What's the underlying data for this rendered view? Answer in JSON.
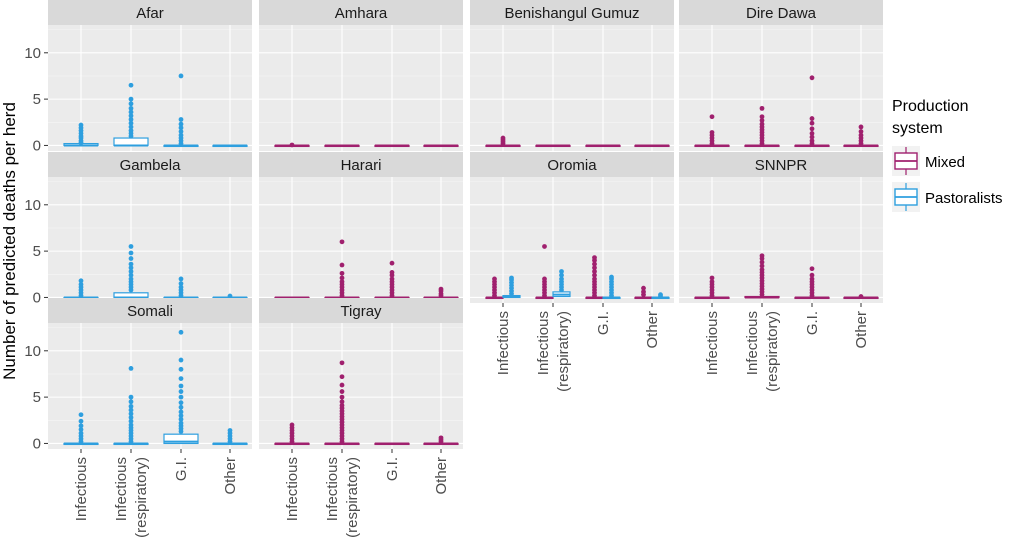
{
  "chart_data": {
    "type": "boxplot",
    "ylabel": "Number of predicted deaths per herd",
    "ylim": [
      -0.6,
      13
    ],
    "yticks": [
      0,
      5,
      10
    ],
    "categories": [
      "Infectious",
      "Infectious\n(respiratory)",
      "G.I.",
      "Other"
    ],
    "legend": {
      "title": "Production\nsystem",
      "position": "right",
      "entries": [
        {
          "name": "Mixed",
          "color": "#A0206E"
        },
        {
          "name": "Pastoralists",
          "color": "#2E9FDF"
        }
      ]
    },
    "panels": [
      {
        "region": "Afar",
        "series": [
          {
            "system": "Pastoralists",
            "boxes": [
              {
                "q1": 0,
                "median": 0,
                "q3": 0.2,
                "outliers": [
                  0.3,
                  0.5,
                  0.8,
                  1.0,
                  1.3,
                  1.6,
                  1.9,
                  2.2
                ]
              },
              {
                "q1": 0,
                "median": 0,
                "q3": 0.8,
                "outliers": [
                  1.0,
                  1.3,
                  1.6,
                  2.0,
                  2.4,
                  2.8,
                  3.2,
                  3.6,
                  4.0,
                  4.5,
                  5.0,
                  6.5
                ]
              },
              {
                "q1": 0,
                "median": 0,
                "q3": 0,
                "outliers": [
                  0.2,
                  0.5,
                  0.8,
                  1.1,
                  1.5,
                  1.9,
                  2.3,
                  2.8,
                  7.5
                ]
              },
              {
                "q1": 0,
                "median": 0,
                "q3": 0,
                "outliers": []
              }
            ]
          }
        ]
      },
      {
        "region": "Amhara",
        "series": [
          {
            "system": "Mixed",
            "boxes": [
              {
                "q1": 0,
                "median": 0,
                "q3": 0,
                "outliers": [
                  0.05
                ]
              },
              {
                "q1": 0,
                "median": 0,
                "q3": 0,
                "outliers": []
              },
              {
                "q1": 0,
                "median": 0,
                "q3": 0,
                "outliers": []
              },
              {
                "q1": 0,
                "median": 0,
                "q3": 0,
                "outliers": []
              }
            ]
          }
        ]
      },
      {
        "region": "Benishangul Gumuz",
        "series": [
          {
            "system": "Mixed",
            "boxes": [
              {
                "q1": 0,
                "median": 0,
                "q3": 0,
                "outliers": [
                  0.2,
                  0.4,
                  0.6,
                  0.8
                ]
              },
              {
                "q1": 0,
                "median": 0,
                "q3": 0,
                "outliers": []
              },
              {
                "q1": 0,
                "median": 0,
                "q3": 0,
                "outliers": []
              },
              {
                "q1": 0,
                "median": 0,
                "q3": 0,
                "outliers": []
              }
            ]
          }
        ]
      },
      {
        "region": "Dire Dawa",
        "series": [
          {
            "system": "Mixed",
            "boxes": [
              {
                "q1": 0,
                "median": 0,
                "q3": 0,
                "outliers": [
                  0.2,
                  0.5,
                  0.8,
                  1.1,
                  1.4,
                  3.1
                ]
              },
              {
                "q1": 0,
                "median": 0,
                "q3": 0,
                "outliers": [
                  0.2,
                  0.5,
                  0.8,
                  1.1,
                  1.4,
                  1.7,
                  2.0,
                  2.3,
                  2.7,
                  3.1,
                  4.0
                ]
              },
              {
                "q1": 0,
                "median": 0,
                "q3": 0,
                "outliers": [
                  0.2,
                  0.5,
                  0.9,
                  1.3,
                  1.8,
                  2.4,
                  2.9,
                  7.3
                ]
              },
              {
                "q1": 0,
                "median": 0,
                "q3": 0,
                "outliers": [
                  0.2,
                  0.5,
                  0.8,
                  1.1,
                  1.5,
                  2.0
                ]
              }
            ]
          }
        ]
      },
      {
        "region": "Gambela",
        "series": [
          {
            "system": "Pastoralists",
            "boxes": [
              {
                "q1": 0,
                "median": 0,
                "q3": 0,
                "outliers": [
                  0.2,
                  0.5,
                  0.8,
                  1.1,
                  1.4,
                  1.8
                ]
              },
              {
                "q1": 0,
                "median": 0,
                "q3": 0.5,
                "outliers": [
                  0.8,
                  1.1,
                  1.4,
                  1.7,
                  2.0,
                  2.4,
                  2.8,
                  3.2,
                  3.6,
                  4.2,
                  4.8,
                  5.5
                ]
              },
              {
                "q1": 0,
                "median": 0,
                "q3": 0,
                "outliers": [
                  0.2,
                  0.5,
                  0.8,
                  1.1,
                  1.5,
                  2.0
                ]
              },
              {
                "q1": 0,
                "median": 0,
                "q3": 0,
                "outliers": [
                  0.15
                ]
              }
            ]
          }
        ]
      },
      {
        "region": "Harari",
        "series": [
          {
            "system": "Mixed",
            "boxes": [
              {
                "q1": 0,
                "median": 0,
                "q3": 0,
                "outliers": []
              },
              {
                "q1": 0,
                "median": 0,
                "q3": 0,
                "outliers": [
                  0.2,
                  0.5,
                  0.8,
                  1.1,
                  1.4,
                  1.7,
                  2.1,
                  2.6,
                  3.5,
                  6.0
                ]
              },
              {
                "q1": 0,
                "median": 0,
                "q3": 0,
                "outliers": [
                  0.2,
                  0.5,
                  0.8,
                  1.1,
                  1.4,
                  1.7,
                  2.0,
                  2.4,
                  2.7,
                  3.7
                ]
              },
              {
                "q1": 0,
                "median": 0,
                "q3": 0,
                "outliers": [
                  0.2,
                  0.4,
                  0.7,
                  0.9
                ]
              }
            ]
          }
        ]
      },
      {
        "region": "Oromia",
        "series": [
          {
            "system": "Mixed",
            "boxes": [
              {
                "q1": 0,
                "median": 0,
                "q3": 0,
                "outliers": [
                  0.2,
                  0.5,
                  0.8,
                  1.1,
                  1.4,
                  1.7,
                  2.0
                ]
              },
              {
                "q1": 0,
                "median": 0,
                "q3": 0,
                "outliers": [
                  0.2,
                  0.5,
                  0.8,
                  1.1,
                  1.4,
                  1.7,
                  2.0,
                  5.5
                ]
              },
              {
                "q1": 0,
                "median": 0,
                "q3": 0,
                "outliers": [
                  0.2,
                  0.5,
                  0.8,
                  1.1,
                  1.4,
                  1.7,
                  2.0,
                  2.4,
                  2.8,
                  3.2,
                  3.6,
                  4.0,
                  4.3
                ]
              },
              {
                "q1": 0,
                "median": 0,
                "q3": 0,
                "outliers": [
                  0.3,
                  0.6,
                  1.0
                ]
              }
            ]
          },
          {
            "system": "Pastoralists",
            "boxes": [
              {
                "q1": 0,
                "median": 0.1,
                "q3": 0.2,
                "outliers": [
                  0.4,
                  0.7,
                  1.0,
                  1.3,
                  1.6,
                  1.9,
                  2.1
                ]
              },
              {
                "q1": 0.1,
                "median": 0.3,
                "q3": 0.6,
                "outliers": [
                  0.8,
                  1.1,
                  1.4,
                  1.7,
                  2.0,
                  2.4,
                  2.8
                ]
              },
              {
                "q1": 0,
                "median": 0,
                "q3": 0,
                "outliers": [
                  0.2,
                  0.5,
                  0.8,
                  1.1,
                  1.4,
                  1.7,
                  2.0,
                  2.2
                ]
              },
              {
                "q1": 0,
                "median": 0,
                "q3": 0,
                "outliers": [
                  0.15,
                  0.3
                ]
              }
            ]
          }
        ]
      },
      {
        "region": "SNNPR",
        "series": [
          {
            "system": "Mixed",
            "boxes": [
              {
                "q1": 0,
                "median": 0,
                "q3": 0,
                "outliers": [
                  0.2,
                  0.5,
                  0.8,
                  1.1,
                  1.4,
                  1.7,
                  2.1
                ]
              },
              {
                "q1": 0,
                "median": 0,
                "q3": 0.1,
                "outliers": [
                  0.3,
                  0.6,
                  0.9,
                  1.2,
                  1.5,
                  1.8,
                  2.1,
                  2.4,
                  2.7,
                  3.0,
                  3.4,
                  3.8,
                  4.2,
                  4.5
                ]
              },
              {
                "q1": 0,
                "median": 0,
                "q3": 0,
                "outliers": [
                  0.2,
                  0.5,
                  0.8,
                  1.1,
                  1.4,
                  1.7,
                  2.0,
                  2.4,
                  3.1
                ]
              },
              {
                "q1": 0,
                "median": 0,
                "q3": 0,
                "outliers": [
                  0.1
                ]
              }
            ]
          }
        ]
      },
      {
        "region": "Somali",
        "series": [
          {
            "system": "Pastoralists",
            "boxes": [
              {
                "q1": 0,
                "median": 0,
                "q3": 0,
                "outliers": [
                  0.2,
                  0.5,
                  0.8,
                  1.1,
                  1.5,
                  1.9,
                  2.4,
                  3.1
                ]
              },
              {
                "q1": 0,
                "median": 0,
                "q3": 0,
                "outliers": [
                  0.2,
                  0.5,
                  0.8,
                  1.1,
                  1.4,
                  1.7,
                  2.0,
                  2.4,
                  2.8,
                  3.2,
                  3.6,
                  4.0,
                  4.5,
                  5.0,
                  8.1
                ]
              },
              {
                "q1": 0,
                "median": 0.2,
                "q3": 1.0,
                "outliers": [
                  1.3,
                  1.6,
                  1.9,
                  2.2,
                  2.6,
                  3.0,
                  3.4,
                  3.9,
                  4.4,
                  5.0,
                  5.6,
                  6.2,
                  7.0,
                  8.0,
                  9.0,
                  12.0
                ]
              },
              {
                "q1": 0,
                "median": 0,
                "q3": 0,
                "outliers": [
                  0.2,
                  0.5,
                  0.8,
                  1.1,
                  1.4
                ]
              }
            ]
          }
        ]
      },
      {
        "region": "Tigray",
        "series": [
          {
            "system": "Mixed",
            "boxes": [
              {
                "q1": 0,
                "median": 0,
                "q3": 0,
                "outliers": [
                  0.2,
                  0.5,
                  0.8,
                  1.1,
                  1.4,
                  1.7,
                  2.0
                ]
              },
              {
                "q1": 0,
                "median": 0,
                "q3": 0,
                "outliers": [
                  0.2,
                  0.5,
                  0.8,
                  1.1,
                  1.4,
                  1.7,
                  2.0,
                  2.3,
                  2.6,
                  2.9,
                  3.2,
                  3.5,
                  3.8,
                  4.1,
                  4.5,
                  5.0,
                  5.6,
                  6.3,
                  7.2,
                  8.7
                ]
              },
              {
                "q1": 0,
                "median": 0,
                "q3": 0,
                "outliers": []
              },
              {
                "q1": 0,
                "median": 0,
                "q3": 0,
                "outliers": [
                  0.2,
                  0.4,
                  0.6
                ]
              }
            ]
          }
        ]
      }
    ]
  }
}
